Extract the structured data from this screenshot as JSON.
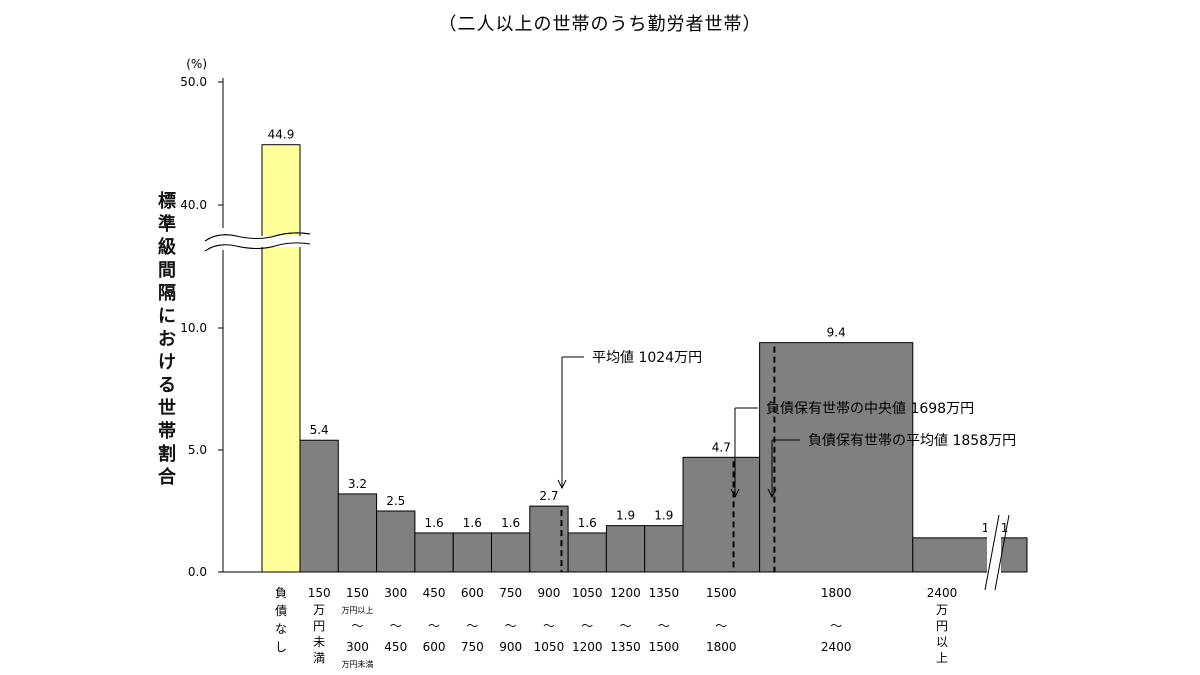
{
  "chart_data": {
    "type": "bar",
    "title": "（二人以上の世帯のうち勤労者世帯）",
    "ylabel": "標準級間隔における世帯割合",
    "yunit": "(%)",
    "yticks": [
      "0.0",
      "5.0",
      "10.0",
      "40.0",
      "50.0"
    ],
    "axis_break": true,
    "ylim_lower": [
      0,
      10
    ],
    "ylim_upper": [
      40,
      50
    ],
    "categories": [
      {
        "top": "負債なし",
        "sub": "",
        "bottom": "",
        "vertical": true
      },
      {
        "top": "150",
        "sub": "",
        "bottom": "万円未満",
        "vertical_bottom": true
      },
      {
        "top": "150",
        "sub": "万円以上",
        "mid": "〜",
        "bottom": "300",
        "sub2": "万円未満"
      },
      {
        "top": "300",
        "mid": "〜",
        "bottom": "450"
      },
      {
        "top": "450",
        "mid": "〜",
        "bottom": "600"
      },
      {
        "top": "600",
        "mid": "〜",
        "bottom": "750"
      },
      {
        "top": "750",
        "mid": "〜",
        "bottom": "900"
      },
      {
        "top": "900",
        "mid": "〜",
        "bottom": "1050"
      },
      {
        "top": "1050",
        "mid": "〜",
        "bottom": "1200"
      },
      {
        "top": "1200",
        "mid": "〜",
        "bottom": "1350"
      },
      {
        "top": "1350",
        "mid": "〜",
        "bottom": "1500"
      },
      {
        "top": "1500",
        "mid": "〜",
        "bottom": "1800"
      },
      {
        "top": "1800",
        "mid": "〜",
        "bottom": "2400"
      },
      {
        "top": "2400",
        "bottom": "万円以上",
        "vertical_bottom": true
      }
    ],
    "bins": [
      {
        "lo": 0,
        "hi": 150,
        "value": 5.4
      },
      {
        "lo": 150,
        "hi": 300,
        "value": 3.2
      },
      {
        "lo": 300,
        "hi": 450,
        "value": 2.5
      },
      {
        "lo": 450,
        "hi": 600,
        "value": 1.6
      },
      {
        "lo": 600,
        "hi": 750,
        "value": 1.6
      },
      {
        "lo": 750,
        "hi": 900,
        "value": 1.6
      },
      {
        "lo": 900,
        "hi": 1050,
        "value": 2.7
      },
      {
        "lo": 1050,
        "hi": 1200,
        "value": 1.6
      },
      {
        "lo": 1200,
        "hi": 1350,
        "value": 1.9
      },
      {
        "lo": 1350,
        "hi": 1500,
        "value": 1.9
      },
      {
        "lo": 1500,
        "hi": 1800,
        "value": 4.7
      },
      {
        "lo": 1800,
        "hi": 2400,
        "value": 9.4
      },
      {
        "lo": 2400,
        "hi": null,
        "value": 17.1
      }
    ],
    "no_debt": {
      "label": "負債なし",
      "value": 44.9
    },
    "bar_height_units": "標準級間隔(150万円)当たりの割合",
    "colors": {
      "no_debt_bar": "#ffff99",
      "bars": "#808080",
      "axis": "#000000"
    },
    "annotations": [
      {
        "label": "平均値 1024万円",
        "x": 1024,
        "dashed": true
      },
      {
        "label": "負債保有世帯の中央値 1698万円",
        "x": 1698,
        "dashed": true
      },
      {
        "label": "負債保有世帯の平均値 1858万円",
        "x": 1858,
        "dashed": true
      }
    ]
  }
}
